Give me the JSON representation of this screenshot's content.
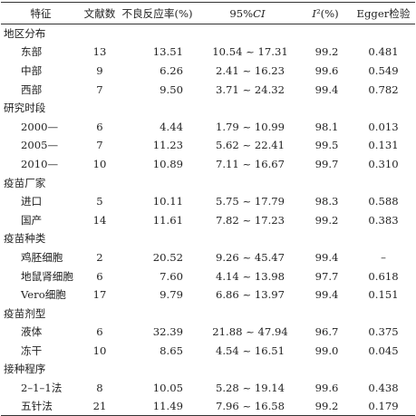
{
  "headers": {
    "feature": "特征",
    "count": "文献数",
    "rate": "不良反应率(%)",
    "ci_prefix": "95%",
    "ci_italic": "CI",
    "i2_italic": "I",
    "i2_suffix": "²(%)",
    "egger": "Egger检验"
  },
  "groups": [
    {
      "title": "地区分布",
      "rows": [
        {
          "name": "东部",
          "n": "13",
          "rate": "13.51",
          "ci": "10.54 ~ 17.31",
          "i2": "99.2",
          "egger": "0.481"
        },
        {
          "name": "中部",
          "n": "9",
          "rate": "6.26",
          "ci": "2.41 ~ 16.23",
          "i2": "99.6",
          "egger": "0.549"
        },
        {
          "name": "西部",
          "n": "7",
          "rate": "9.50",
          "ci": "3.71 ~ 24.32",
          "i2": "99.4",
          "egger": "0.782"
        }
      ]
    },
    {
      "title": "研究时段",
      "rows": [
        {
          "name": "2000—",
          "n": "6",
          "rate": "4.44",
          "ci": "1.79 ~ 10.99",
          "i2": "98.1",
          "egger": "0.013"
        },
        {
          "name": "2005—",
          "n": "7",
          "rate": "11.23",
          "ci": "5.62 ~ 22.41",
          "i2": "99.5",
          "egger": "0.131"
        },
        {
          "name": "2010—",
          "n": "10",
          "rate": "10.89",
          "ci": "7.11 ~ 16.67",
          "i2": "99.7",
          "egger": "0.310"
        }
      ]
    },
    {
      "title": "疫苗厂家",
      "rows": [
        {
          "name": "进口",
          "n": "5",
          "rate": "10.11",
          "ci": "5.75 ~ 17.79",
          "i2": "98.3",
          "egger": "0.588"
        },
        {
          "name": "国产",
          "n": "14",
          "rate": "11.61",
          "ci": "7.82 ~ 17.23",
          "i2": "99.2",
          "egger": "0.383"
        }
      ]
    },
    {
      "title": "疫苗种类",
      "rows": [
        {
          "name": "鸡胚细胞",
          "n": "2",
          "rate": "20.52",
          "ci": "9.26 ~ 45.47",
          "i2": "99.4",
          "egger": "–"
        },
        {
          "name": "地鼠肾细胞",
          "n": "6",
          "rate": "7.60",
          "ci": "4.14 ~ 13.98",
          "i2": "97.7",
          "egger": "0.618"
        },
        {
          "name": "Vero细胞",
          "n": "17",
          "rate": "9.79",
          "ci": "6.86 ~ 13.97",
          "i2": "99.4",
          "egger": "0.151"
        }
      ]
    },
    {
      "title": "疫苗剂型",
      "rows": [
        {
          "name": "液体",
          "n": "6",
          "rate": "32.39",
          "ci": "21.88 ~ 47.94",
          "i2": "96.7",
          "egger": "0.375"
        },
        {
          "name": "冻干",
          "n": "10",
          "rate": "8.65",
          "ci": "4.54 ~ 16.51",
          "i2": "99.0",
          "egger": "0.045"
        }
      ]
    },
    {
      "title": "接种程序",
      "rows": [
        {
          "name": "2–1–1法",
          "n": "8",
          "rate": "10.05",
          "ci": "5.28 ~ 19.14",
          "i2": "99.6",
          "egger": "0.438"
        },
        {
          "name": "五针法",
          "n": "21",
          "rate": "11.49",
          "ci": "7.96 ~ 16.58",
          "i2": "99.2",
          "egger": "0.179"
        }
      ]
    }
  ]
}
